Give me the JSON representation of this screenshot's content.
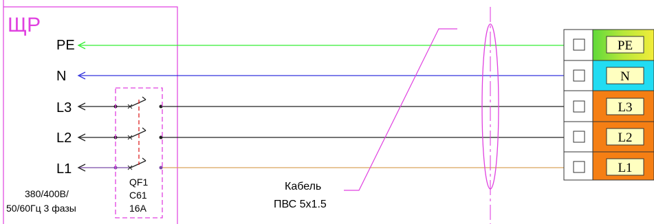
{
  "panel": {
    "title": "ЩР",
    "supply_line1": "380/400В/",
    "supply_line2": "50/60Гц 3 фазы",
    "conductors": [
      "PE",
      "N",
      "L3",
      "L2",
      "L1"
    ]
  },
  "breaker": {
    "line1": "QF1",
    "line2": "C61",
    "line3": "16A"
  },
  "cable": {
    "line1": "Кабель",
    "line2": "ПВС 5х1.5"
  },
  "terminals": [
    "PE",
    "N",
    "L3",
    "L2",
    "L1"
  ],
  "colors": {
    "frame": "#e040e0",
    "pe_wire": "#33ee33",
    "n_wire": "#3333dd",
    "phase_wire": "#222222",
    "l1_wire": "#d9a35a",
    "breaker_link": "#dd2222",
    "pe_block": "#8fe03a",
    "n_block": "#22dcf2",
    "phase_block": "#f57f14",
    "label_box": "#ffffc0"
  }
}
